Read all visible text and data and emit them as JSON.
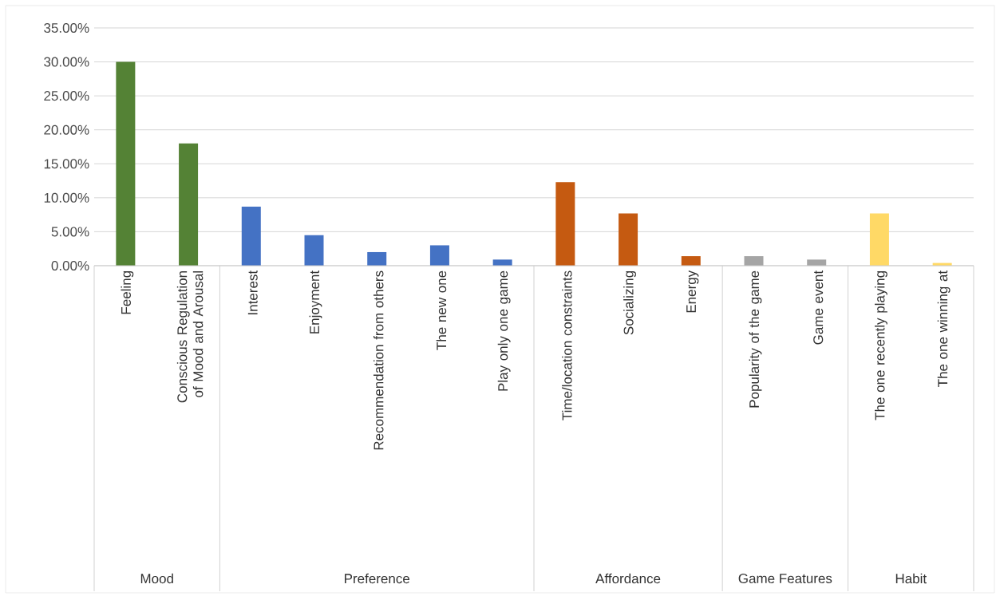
{
  "chart_data": {
    "type": "bar",
    "categories": [
      "Feeling",
      "Conscious Regulation of Mood and Arousal",
      "Interest",
      "Enjoyment",
      "Recommendation from others",
      "The new one",
      "Play only one game",
      "Time/location constraints",
      "Socializing",
      "Energy",
      "Popularity of the game",
      "Game event",
      "The one recently playing",
      "The one winning at"
    ],
    "series": [
      {
        "color": "#548235",
        "values": [
          30.0,
          18.0,
          null,
          null,
          null,
          null,
          null,
          null,
          null,
          null,
          null,
          null,
          null,
          null
        ]
      },
      {
        "color": "#4472c4",
        "values": [
          null,
          null,
          8.7,
          4.5,
          2.0,
          3.0,
          0.9,
          null,
          null,
          null,
          null,
          null,
          null,
          null
        ]
      },
      {
        "color": "#c55a11",
        "values": [
          null,
          null,
          null,
          null,
          null,
          null,
          null,
          12.3,
          7.7,
          1.4,
          null,
          null,
          null,
          null
        ]
      },
      {
        "color": "#a5a5a5",
        "values": [
          null,
          null,
          null,
          null,
          null,
          null,
          null,
          null,
          null,
          null,
          1.4,
          0.9,
          null,
          null
        ]
      },
      {
        "color": "#ffd966",
        "values": [
          null,
          null,
          null,
          null,
          null,
          null,
          null,
          null,
          null,
          null,
          null,
          null,
          7.7,
          0.4
        ]
      }
    ],
    "ylim": [
      0,
      35
    ],
    "yticks": [
      {
        "value": 0,
        "label": "0.00%"
      },
      {
        "value": 5,
        "label": "5.00%"
      },
      {
        "value": 10,
        "label": "10.00%"
      },
      {
        "value": 15,
        "label": "15.00%"
      },
      {
        "value": 20,
        "label": "20.00%"
      },
      {
        "value": 25,
        "label": "25.00%"
      },
      {
        "value": 30,
        "label": "30.00%"
      },
      {
        "value": 35,
        "label": "35.00%"
      }
    ],
    "annotations": [
      "Mood",
      "Preference",
      "Affordance",
      "Game Features",
      "Habit"
    ],
    "grid": "y"
  }
}
